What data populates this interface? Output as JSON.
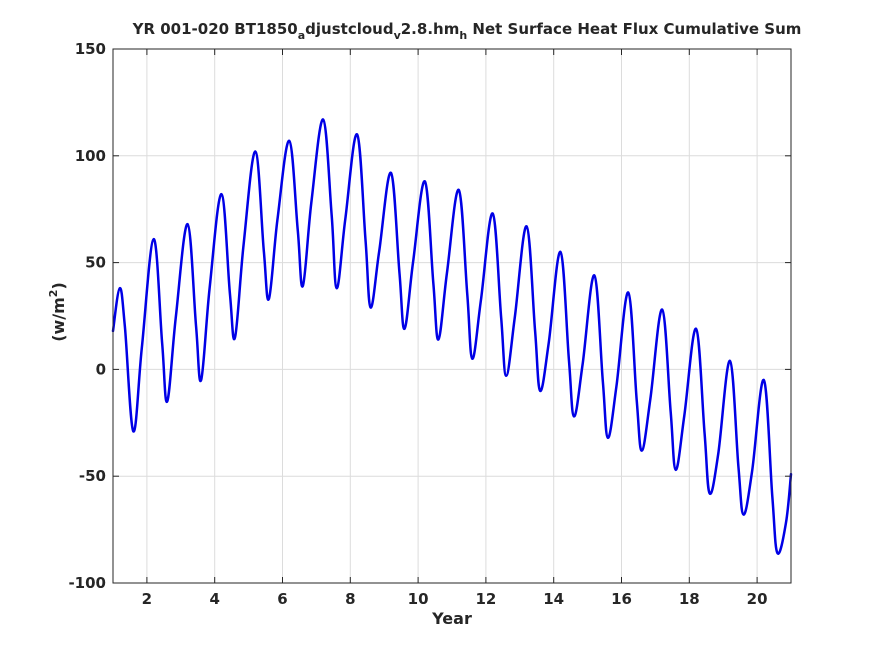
{
  "chart_data": {
    "type": "line",
    "title": {
      "parts": [
        {
          "text": "YR 001-020 BT1850",
          "sub": false
        },
        {
          "text": "a",
          "sub": true
        },
        {
          "text": "djustcloud",
          "sub": false
        },
        {
          "text": "v",
          "sub": true
        },
        {
          "text": "2.8.hm",
          "sub": false
        },
        {
          "text": "h",
          "sub": true
        },
        {
          "text": " Net Surface Heat Flux  Cumulative Sum",
          "sub": false
        }
      ]
    },
    "xlabel": "Year",
    "ylabel": {
      "main": "(w/m",
      "sup": "2",
      "close": ")"
    },
    "xlim": [
      1,
      21
    ],
    "ylim": [
      -100,
      150
    ],
    "xticks": [
      2,
      4,
      6,
      8,
      10,
      12,
      14,
      16,
      18,
      20
    ],
    "yticks": [
      -100,
      -50,
      0,
      50,
      100,
      150
    ],
    "grid": true,
    "color": "#0000e6",
    "series": [
      {
        "x": [
          1.0,
          1.2,
          1.35,
          1.6,
          1.85,
          2.2,
          2.45,
          2.6,
          2.85,
          3.2,
          3.45,
          3.6,
          3.85,
          4.2,
          4.45,
          4.6,
          4.85,
          5.2,
          5.45,
          5.6,
          5.85,
          6.2,
          6.45,
          6.6,
          6.85,
          7.2,
          7.45,
          7.6,
          7.85,
          8.2,
          8.45,
          8.6,
          8.85,
          9.2,
          9.45,
          9.6,
          9.85,
          10.2,
          10.45,
          10.6,
          10.85,
          11.2,
          11.45,
          11.6,
          11.85,
          12.2,
          12.45,
          12.6,
          12.85,
          13.2,
          13.45,
          13.6,
          13.85,
          14.2,
          14.45,
          14.6,
          14.85,
          15.2,
          15.45,
          15.6,
          15.85,
          16.2,
          16.45,
          16.6,
          16.85,
          17.2,
          17.45,
          17.6,
          17.85,
          18.2,
          18.45,
          18.6,
          18.85,
          19.2,
          19.45,
          19.6,
          19.85,
          20.2,
          20.45,
          20.6,
          20.85,
          21.0
        ],
        "y": [
          18,
          38,
          20,
          -29,
          10,
          61,
          12,
          -15,
          24,
          68,
          20,
          -5,
          38,
          82,
          35,
          15,
          58,
          102,
          55,
          33,
          70,
          107,
          65,
          39,
          78,
          117,
          72,
          38,
          70,
          110,
          60,
          29,
          55,
          92,
          45,
          19,
          50,
          88,
          40,
          14,
          45,
          84,
          35,
          5,
          32,
          73,
          24,
          -3,
          24,
          67,
          18,
          -10,
          12,
          55,
          4,
          -22,
          2,
          44,
          -6,
          -32,
          -8,
          36,
          -15,
          -38,
          -14,
          28,
          -20,
          -47,
          -22,
          19,
          -30,
          -58,
          -40,
          4,
          -46,
          -68,
          -48,
          -5,
          -60,
          -86,
          -72,
          -49
        ]
      }
    ]
  }
}
